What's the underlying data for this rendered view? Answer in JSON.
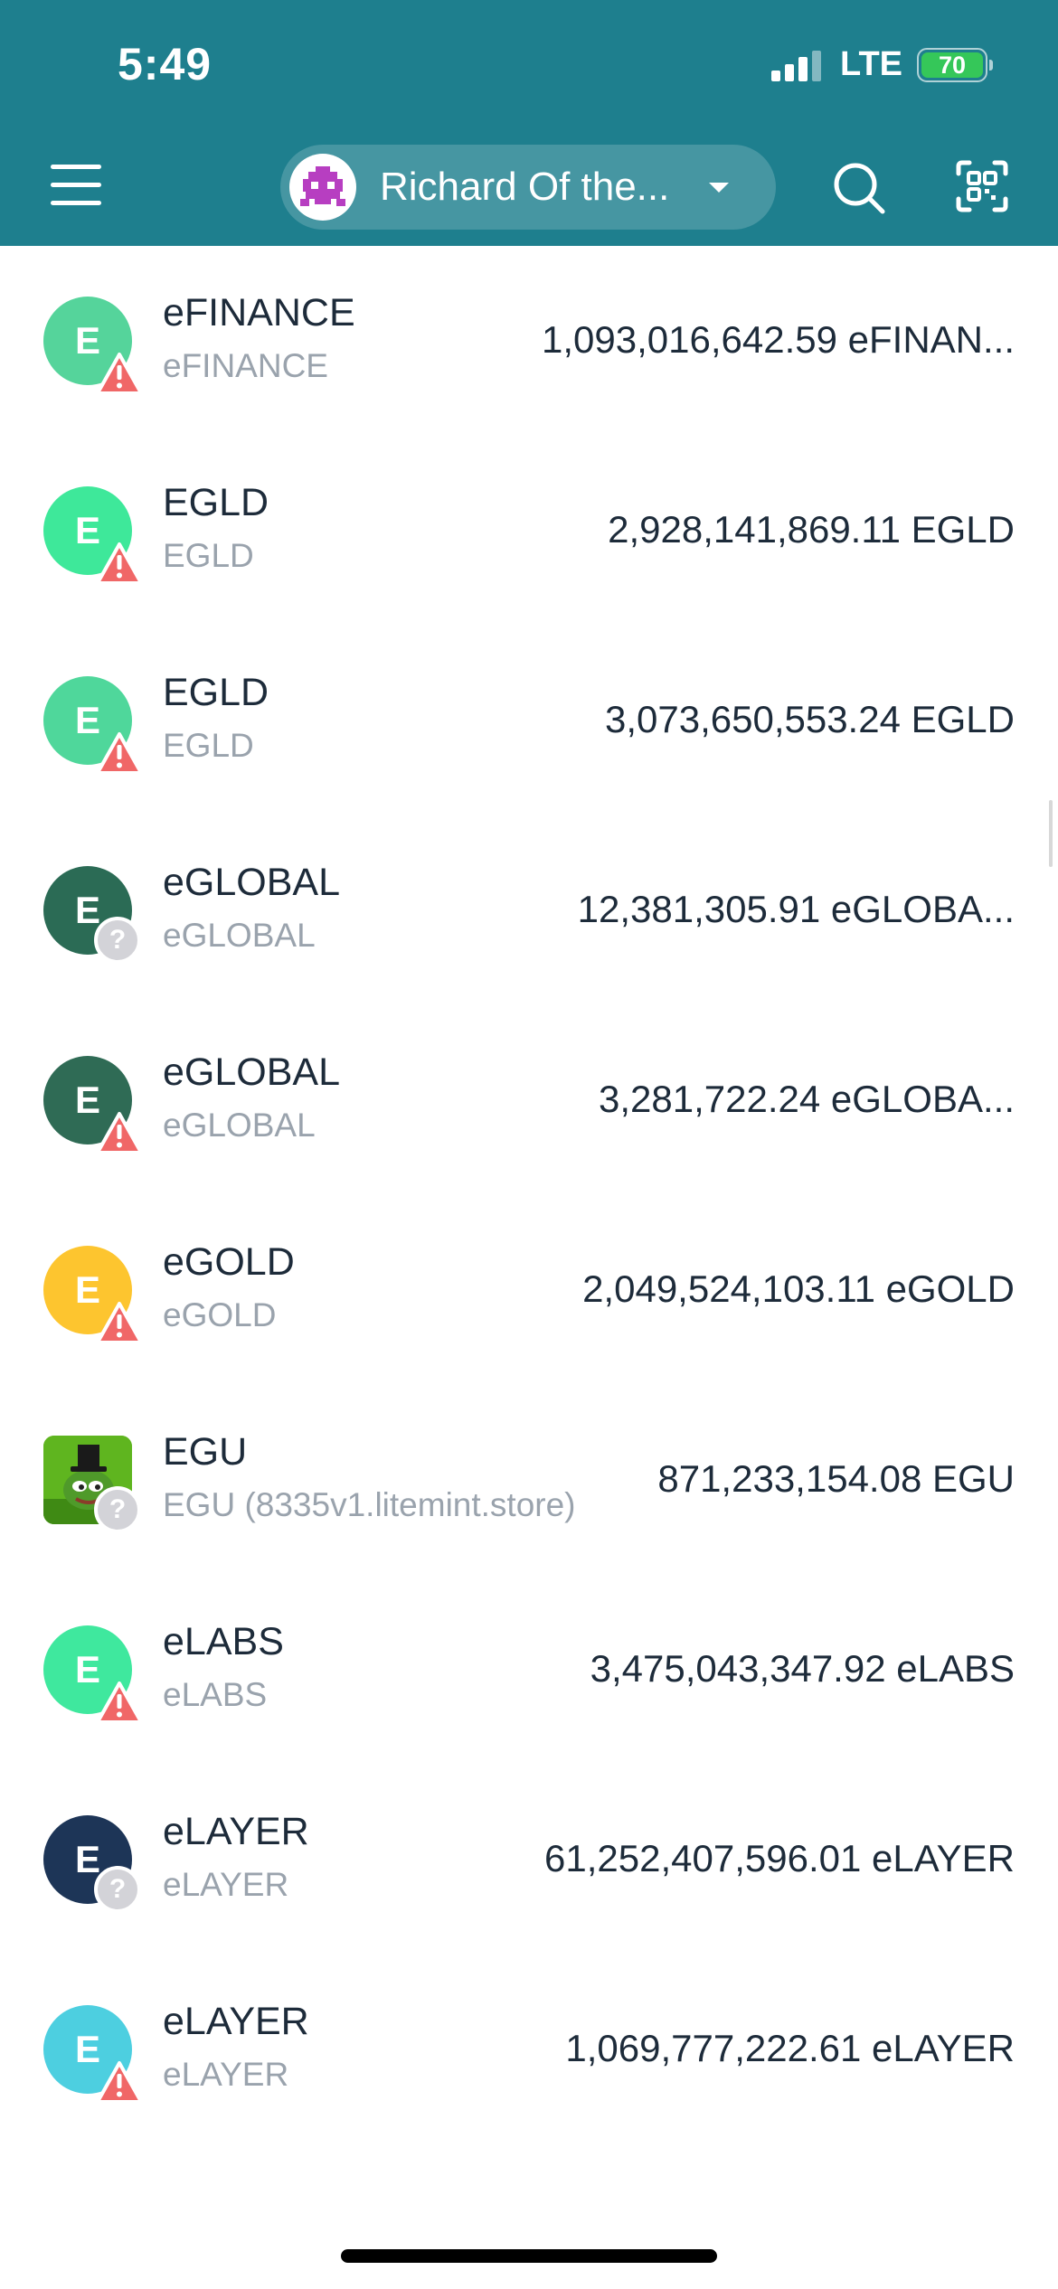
{
  "status_bar": {
    "time": "5:49",
    "carrier": "LTE",
    "battery": "70"
  },
  "header": {
    "account_name": "Richard Of the...",
    "colors": {
      "bar": "#1e7f8e",
      "avatar_accent": "#b73ec1"
    }
  },
  "tokens": [
    {
      "name": "eFINANCE",
      "subtitle": "eFINANCE",
      "balance": "1,093,016,642.59 eFINAN...",
      "icon_letter": "E",
      "icon_color": "#55d49b",
      "badge": "warning"
    },
    {
      "name": "EGLD",
      "subtitle": "EGLD",
      "balance": "2,928,141,869.11 EGLD",
      "icon_letter": "E",
      "icon_color": "#3ee89a",
      "badge": "warning"
    },
    {
      "name": "EGLD",
      "subtitle": "EGLD",
      "balance": "3,073,650,553.24 EGLD",
      "icon_letter": "E",
      "icon_color": "#4fd79b",
      "badge": "warning"
    },
    {
      "name": "eGLOBAL",
      "subtitle": "eGLOBAL",
      "balance": "12,381,305.91 eGLOBA...",
      "icon_letter": "E",
      "icon_color": "#2b6b55",
      "badge": "unknown"
    },
    {
      "name": "eGLOBAL",
      "subtitle": "eGLOBAL",
      "balance": "3,281,722.24 eGLOBA...",
      "icon_letter": "E",
      "icon_color": "#2f6b55",
      "badge": "warning"
    },
    {
      "name": "eGOLD",
      "subtitle": "eGOLD",
      "balance": "2,049,524,103.11 eGOLD",
      "icon_letter": "E",
      "icon_color": "#fdc52f",
      "badge": "warning"
    },
    {
      "name": "EGU",
      "subtitle": "EGU (8335v1.litemint.store)",
      "balance": "871,233,154.08 EGU",
      "icon_letter": "",
      "icon_color": "#5fb51f",
      "badge": "unknown",
      "image_icon": "frog-top-hat-icon"
    },
    {
      "name": "eLABS",
      "subtitle": "eLABS",
      "balance": "3,475,043,347.92 eLABS",
      "icon_letter": "E",
      "icon_color": "#3fe89e",
      "badge": "warning"
    },
    {
      "name": "eLAYER",
      "subtitle": "eLAYER",
      "balance": "61,252,407,596.01 eLAYER",
      "icon_letter": "E",
      "icon_color": "#1d3557",
      "badge": "unknown"
    },
    {
      "name": "eLAYER",
      "subtitle": "eLAYER",
      "balance": "1,069,777,222.61 eLAYER",
      "icon_letter": "E",
      "icon_color": "#4dcfe0",
      "badge": "warning"
    }
  ],
  "icons": {
    "menu": "menu-icon",
    "search": "search-icon",
    "scan": "scan-qr-icon",
    "warning_badge": "warning-icon",
    "unknown_badge": "question-icon"
  }
}
